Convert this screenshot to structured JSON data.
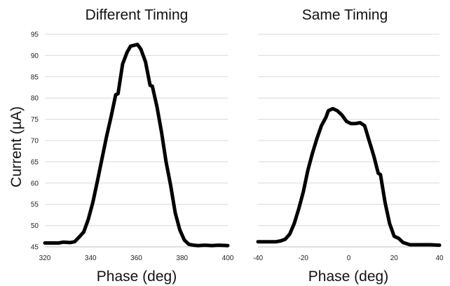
{
  "shared": {
    "ylabel": "Current (µA)",
    "ylim": [
      45,
      95
    ],
    "yticks": [
      45,
      50,
      55,
      60,
      65,
      70,
      75,
      80,
      85,
      90,
      95
    ],
    "series_color": "#000000",
    "grid_color": "#d9d9d9"
  },
  "chart_data": [
    {
      "type": "line",
      "title": "Different Timing",
      "xlabel": "Phase (deg)",
      "ylabel": "Current (µA)",
      "xlim": [
        320,
        400
      ],
      "ylim": [
        45,
        95
      ],
      "xticks": [
        320,
        340,
        360,
        380,
        400
      ],
      "yticks": [
        45,
        50,
        55,
        60,
        65,
        70,
        75,
        80,
        85,
        90,
        95
      ],
      "grid": "horizontal",
      "series": [
        {
          "points": [
            [
              320,
              45.9
            ],
            [
              326,
              45.9
            ],
            [
              328,
              46.1
            ],
            [
              331,
              46.0
            ],
            [
              333,
              46.2
            ],
            [
              335,
              47.3
            ],
            [
              337,
              48.5
            ],
            [
              339,
              51.5
            ],
            [
              341,
              55.5
            ],
            [
              343,
              60.5
            ],
            [
              345,
              65.8
            ],
            [
              347,
              71.0
            ],
            [
              349,
              75.7
            ],
            [
              351,
              80.8
            ],
            [
              352,
              81.0
            ],
            [
              354,
              88.0
            ],
            [
              356,
              90.8
            ],
            [
              357.5,
              92.2
            ],
            [
              359,
              92.4
            ],
            [
              360.5,
              92.6
            ],
            [
              362,
              91.5
            ],
            [
              364,
              88.5
            ],
            [
              366,
              83.0
            ],
            [
              367,
              82.8
            ],
            [
              369,
              78.0
            ],
            [
              371,
              72.0
            ],
            [
              373,
              65.0
            ],
            [
              375,
              59.5
            ],
            [
              377,
              53.0
            ],
            [
              379,
              49.0
            ],
            [
              381,
              46.6
            ],
            [
              383,
              45.6
            ],
            [
              385,
              45.4
            ],
            [
              387,
              45.3
            ],
            [
              390,
              45.4
            ],
            [
              393,
              45.3
            ],
            [
              396,
              45.4
            ],
            [
              400,
              45.3
            ]
          ]
        }
      ]
    },
    {
      "type": "line",
      "title": "Same Timing",
      "xlabel": "Phase (deg)",
      "xlim": [
        -40,
        40
      ],
      "ylim": [
        45,
        95
      ],
      "xticks": [
        -40,
        -20,
        0,
        20,
        40
      ],
      "yticks": [
        45,
        50,
        55,
        60,
        65,
        70,
        75,
        80,
        85,
        90,
        95
      ],
      "grid": "horizontal",
      "series": [
        {
          "points": [
            [
              -40,
              46.2
            ],
            [
              -35,
              46.2
            ],
            [
              -32,
              46.2
            ],
            [
              -30,
              46.4
            ],
            [
              -28,
              46.8
            ],
            [
              -26,
              48.0
            ],
            [
              -24,
              50.5
            ],
            [
              -22,
              54.0
            ],
            [
              -20,
              58.0
            ],
            [
              -18,
              63.0
            ],
            [
              -16,
              67.0
            ],
            [
              -14,
              70.5
            ],
            [
              -12,
              73.5
            ],
            [
              -10,
              75.5
            ],
            [
              -9,
              77.0
            ],
            [
              -7,
              77.5
            ],
            [
              -5,
              77.0
            ],
            [
              -3,
              76.0
            ],
            [
              -1,
              74.5
            ],
            [
              1,
              74.0
            ],
            [
              3,
              74.0
            ],
            [
              5,
              74.2
            ],
            [
              7,
              73.5
            ],
            [
              9,
              70.0
            ],
            [
              11,
              66.5
            ],
            [
              13,
              62.3
            ],
            [
              14,
              62.0
            ],
            [
              16,
              55.5
            ],
            [
              18,
              50.5
            ],
            [
              20,
              47.5
            ],
            [
              22,
              47.0
            ],
            [
              24,
              46.0
            ],
            [
              27,
              45.5
            ],
            [
              30,
              45.5
            ],
            [
              33,
              45.5
            ],
            [
              36,
              45.5
            ],
            [
              40,
              45.4
            ]
          ]
        }
      ]
    }
  ]
}
